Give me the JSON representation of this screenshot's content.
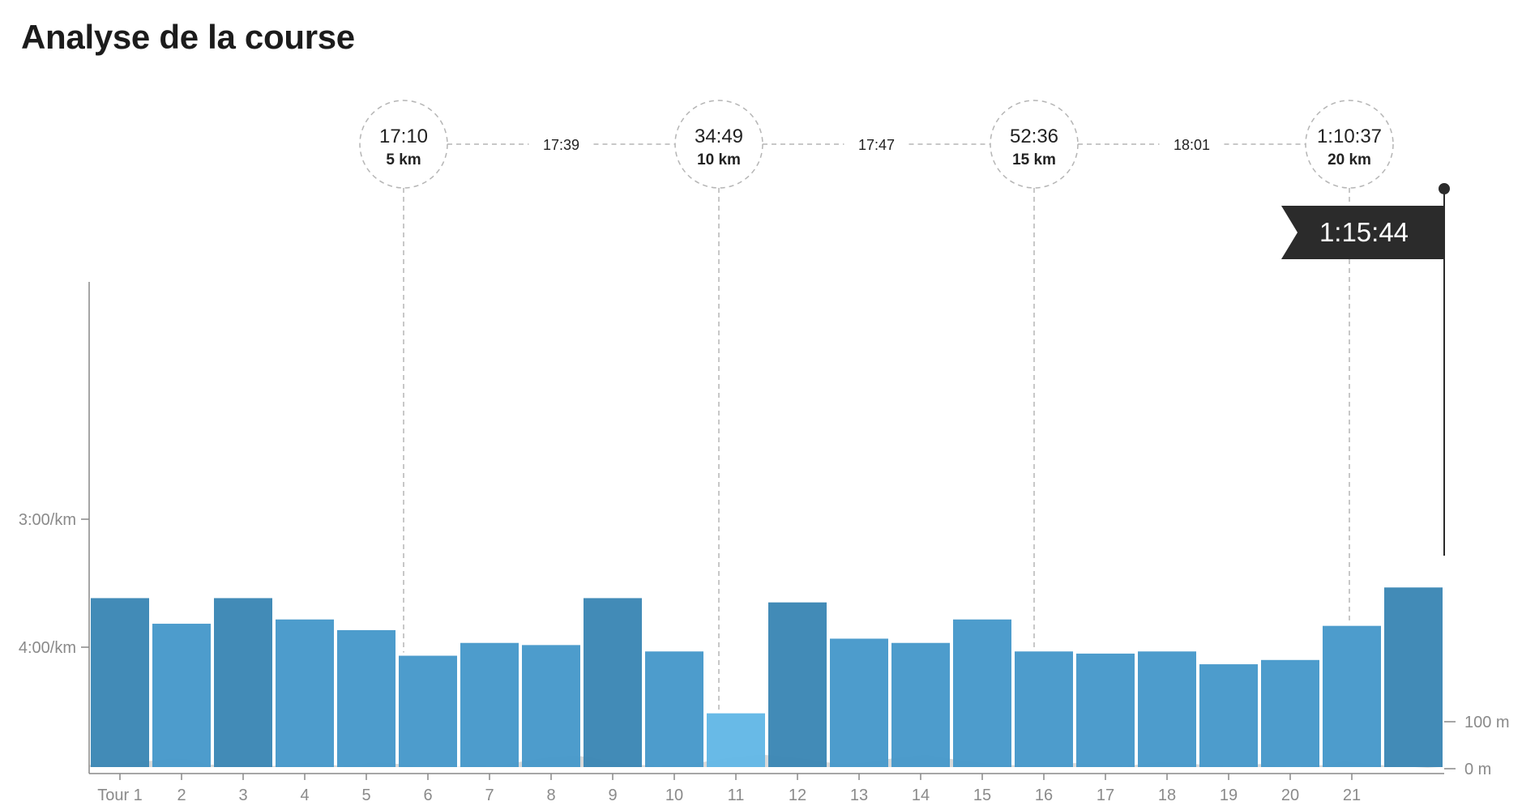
{
  "page_title": "Analyse de la course",
  "chart_data": {
    "type": "bar",
    "title": "Analyse de la course",
    "categories": [
      "Tour 1",
      "2",
      "3",
      "4",
      "5",
      "6",
      "7",
      "8",
      "9",
      "10",
      "11",
      "12",
      "13",
      "14",
      "15",
      "16",
      "17",
      "18",
      "19",
      "20",
      "21",
      ""
    ],
    "pace_seconds_per_km": [
      217,
      229,
      217,
      227,
      232,
      244,
      238,
      239,
      217,
      242,
      271,
      219,
      236,
      238,
      227,
      242,
      243,
      242,
      248,
      246,
      230,
      212
    ],
    "y_ticks": [
      {
        "value": 180,
        "label": "3:00/km"
      },
      {
        "value": 240,
        "label": "4:00/km"
      }
    ],
    "y_scale": "inverted_pace",
    "elevation_ticks": [
      {
        "value": 100,
        "label": "100 m"
      },
      {
        "value": 0,
        "label": "0 m"
      }
    ],
    "elevation_m": [
      8,
      6,
      10,
      14,
      18,
      22,
      20,
      10,
      6,
      8,
      10,
      6,
      8,
      12,
      10,
      6,
      8,
      14,
      12,
      8,
      4,
      6,
      4,
      8,
      6,
      10,
      16,
      22,
      26,
      28,
      24,
      16,
      10,
      8,
      6,
      8,
      10,
      16,
      22,
      26,
      30,
      28,
      24,
      20,
      14,
      10,
      12,
      16,
      22,
      26,
      30,
      24,
      18,
      14,
      10,
      8,
      6,
      8,
      10,
      12,
      10,
      8,
      6,
      10,
      14,
      12,
      10,
      8,
      6,
      8,
      10,
      6,
      4,
      6,
      8,
      16,
      12,
      8,
      6,
      4,
      2,
      4
    ],
    "splits": [
      {
        "time": "17:10",
        "distance": "5 km"
      },
      {
        "time": "34:49",
        "distance": "10 km"
      },
      {
        "time": "52:36",
        "distance": "15 km"
      },
      {
        "time": "1:10:37",
        "distance": "20 km"
      }
    ],
    "segment_times": [
      "17:39",
      "17:47",
      "18:01"
    ],
    "finish_time": "1:15:44",
    "grid": false,
    "legend": "none"
  },
  "colors": {
    "bar_dark": "#3a86b4",
    "bar_mid": "#4698ca",
    "bar_light": "#62b7e6",
    "elevation": "#d9d9d9",
    "axis": "#888888",
    "dashed": "#b5b5b5",
    "flag": "#2b2b2b"
  }
}
